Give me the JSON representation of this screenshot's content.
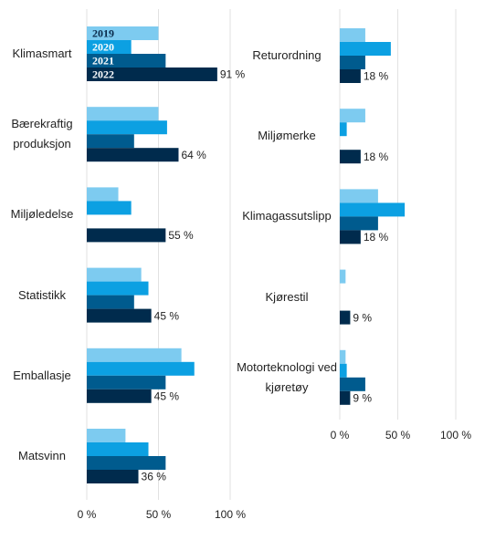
{
  "chart_data": [
    {
      "type": "bar",
      "orientation": "horizontal",
      "categories": [
        "Klimasmart",
        "Bærekraftig produksjon",
        "Miljøledelse",
        "Statistikk",
        "Emballasje",
        "Matsvinn"
      ],
      "series": [
        {
          "name": "2019",
          "color": "#7dcbf0",
          "values": [
            50,
            50,
            22,
            38,
            66,
            27
          ]
        },
        {
          "name": "2020",
          "color": "#0ca0e2",
          "values": [
            31,
            56,
            31,
            43,
            75,
            43
          ]
        },
        {
          "name": "2021",
          "color": "#005b8e",
          "values": [
            55,
            33,
            null,
            33,
            55,
            55
          ]
        },
        {
          "name": "2022",
          "color": "#002b4d",
          "values": [
            91,
            64,
            55,
            45,
            45,
            36
          ],
          "value_labels": [
            "91 %",
            "64 %",
            "55 %",
            "45 %",
            "45 %",
            "36 %"
          ]
        }
      ],
      "xlim": [
        0,
        100
      ],
      "xticks": [
        {
          "value": 0,
          "label": "0 %"
        },
        {
          "value": 50,
          "label": "50 %"
        },
        {
          "value": 100,
          "label": "100 %"
        }
      ],
      "grid": true
    },
    {
      "type": "bar",
      "orientation": "horizontal",
      "categories": [
        "Returordning",
        "Miljømerke",
        "Klimagassutslipp",
        "Kjørestil",
        "Motorteknologi ved kjøretøy"
      ],
      "series": [
        {
          "color": "#7dcbf0",
          "values": [
            22,
            22,
            33,
            5,
            5
          ]
        },
        {
          "color": "#0ca0e2",
          "values": [
            44,
            6,
            56,
            null,
            6
          ]
        },
        {
          "color": "#005b8e",
          "values": [
            22,
            null,
            33,
            null,
            22
          ]
        },
        {
          "color": "#002b4d",
          "values": [
            18,
            18,
            18,
            9,
            9
          ],
          "value_labels": [
            "18 %",
            "18 %",
            "18 %",
            "9 %",
            "9 %"
          ]
        }
      ],
      "xlim": [
        0,
        100
      ],
      "xticks": [
        {
          "value": 0,
          "label": "0 %"
        },
        {
          "value": 50,
          "label": "50 %"
        },
        {
          "value": 100,
          "label": "100 %"
        }
      ],
      "grid": true
    }
  ]
}
